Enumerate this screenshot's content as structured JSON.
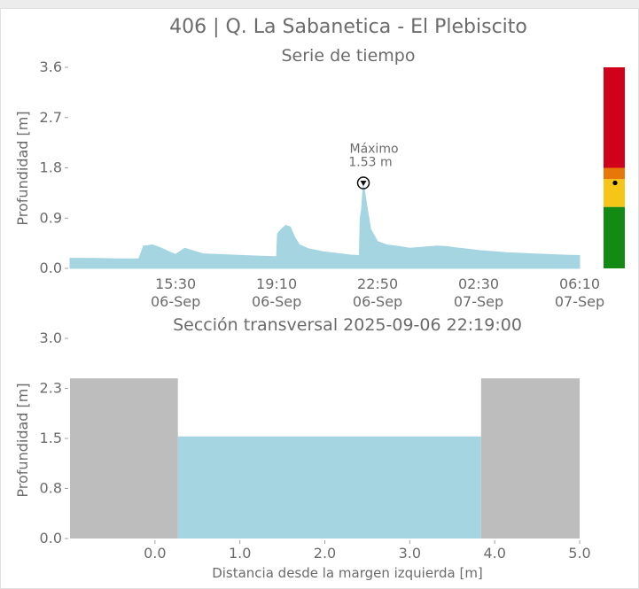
{
  "figure": {
    "title": "406 | Q. La Sabanetica - El Plebiscito",
    "colors": {
      "water": "#a6d5e2",
      "bank": "#bdbdbd",
      "text": "#6b6b6b",
      "axis": "#a0a0a0",
      "risk_red": "#d0021b",
      "risk_orange": "#e8770a",
      "risk_yellow": "#f5c518",
      "risk_green": "#138a13"
    }
  },
  "chart_data": [
    {
      "type": "area",
      "title": "Serie de tiempo",
      "ylabel": "Profundidad [m]",
      "ylim": [
        0,
        3.6
      ],
      "yticks": [
        "0.0",
        "0.9",
        "1.8",
        "2.7",
        "3.6"
      ],
      "xticks": [
        {
          "time": "15:30",
          "date": "06-Sep"
        },
        {
          "time": "19:10",
          "date": "06-Sep"
        },
        {
          "time": "22:50",
          "date": "06-Sep"
        },
        {
          "time": "02:30",
          "date": "07-Sep"
        },
        {
          "time": "06:10",
          "date": "07-Sep"
        }
      ],
      "x_range": [
        "2025-09-06 11:40",
        "2025-09-07 06:10"
      ],
      "x": [
        "2025-09-06 11:40",
        "2025-09-06 12:30",
        "2025-09-06 13:30",
        "2025-09-06 14:10",
        "2025-09-06 14:20",
        "2025-09-06 14:40",
        "2025-09-06 15:00",
        "2025-09-06 15:15",
        "2025-09-06 15:30",
        "2025-09-06 15:50",
        "2025-09-06 16:30",
        "2025-09-06 17:30",
        "2025-09-06 18:30",
        "2025-09-06 19:10",
        "2025-09-06 19:12",
        "2025-09-06 19:20",
        "2025-09-06 19:30",
        "2025-09-06 19:40",
        "2025-09-06 19:50",
        "2025-09-06 20:00",
        "2025-09-06 20:20",
        "2025-09-06 20:50",
        "2025-09-06 21:20",
        "2025-09-06 21:50",
        "2025-09-06 22:10",
        "2025-09-06 22:12",
        "2025-09-06 22:15",
        "2025-09-06 22:19",
        "2025-09-06 22:25",
        "2025-09-06 22:35",
        "2025-09-06 22:50",
        "2025-09-06 23:10",
        "2025-09-06 23:30",
        "2025-09-07 00:00",
        "2025-09-07 00:30",
        "2025-09-07 01:00",
        "2025-09-07 01:20",
        "2025-09-07 01:40",
        "2025-09-07 02:00",
        "2025-09-07 02:30",
        "2025-09-07 03:30",
        "2025-09-07 04:30",
        "2025-09-07 05:30",
        "2025-09-07 06:10"
      ],
      "values": [
        0.18,
        0.18,
        0.17,
        0.17,
        0.4,
        0.42,
        0.36,
        0.3,
        0.25,
        0.36,
        0.26,
        0.24,
        0.22,
        0.21,
        0.62,
        0.7,
        0.77,
        0.74,
        0.55,
        0.42,
        0.35,
        0.3,
        0.27,
        0.24,
        0.23,
        0.9,
        1.05,
        1.53,
        1.2,
        0.7,
        0.48,
        0.42,
        0.4,
        0.36,
        0.38,
        0.4,
        0.39,
        0.37,
        0.35,
        0.32,
        0.28,
        0.26,
        0.24,
        0.23
      ],
      "annotation": {
        "label": "Máximo",
        "value_label": "1.53 m",
        "time": "2025-09-06 22:19",
        "value": 1.53
      },
      "risk_scale": {
        "max": 3.6,
        "levels": [
          1.1,
          1.6,
          1.8,
          3.6
        ],
        "current": 1.53
      }
    },
    {
      "type": "area",
      "title": "Sección transversal 2025-09-06 22:19:00",
      "xlabel": "Distancia desde la margen izquierda [m]",
      "ylabel": "Profundidad [m]",
      "xlim": [
        -1.0,
        5.0
      ],
      "ylim": [
        0,
        3.0
      ],
      "xticks": [
        "0.0",
        "1.0",
        "2.0",
        "3.0",
        "4.0",
        "5.0"
      ],
      "yticks": [
        "0.0",
        "0.8",
        "1.5",
        "2.3",
        "3.0"
      ],
      "bank_height": 2.4,
      "water_level": 1.53,
      "left_bank_x": [
        -1.0,
        0.27
      ],
      "right_bank_x": [
        3.84,
        5.0
      ]
    }
  ]
}
